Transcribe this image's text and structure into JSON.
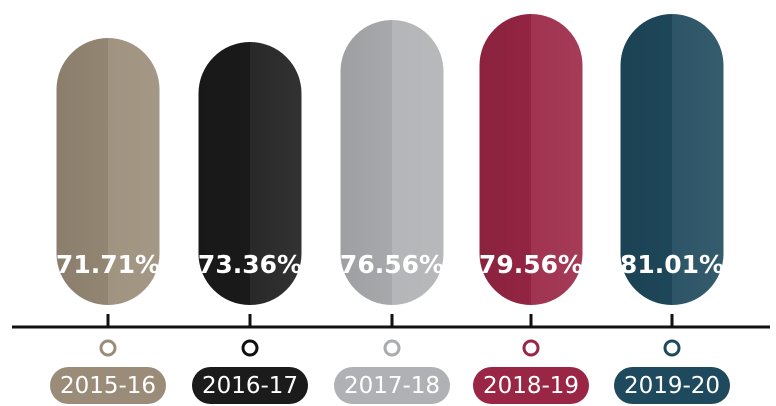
{
  "chart_data": {
    "type": "bar",
    "categories": [
      "2015-16",
      "2016-17",
      "2017-18",
      "2018-19",
      "2019-20"
    ],
    "values": [
      71.71,
      73.36,
      76.56,
      79.56,
      81.01
    ],
    "value_labels": [
      "71.71%",
      "73.36%",
      "76.56%",
      "79.56%",
      "81.01%"
    ],
    "unit": "%",
    "colors": [
      "#9a8c78",
      "#1b1b1b",
      "#b0b1b4",
      "#9a2645",
      "#1f4a5d"
    ],
    "marker_colors": [
      "#9a8c78",
      "#111111",
      "#aaabad",
      "#9a2645",
      "#1f4a5d"
    ],
    "title": "",
    "xlabel": "",
    "ylabel": "",
    "grid": false,
    "legend": "none"
  }
}
